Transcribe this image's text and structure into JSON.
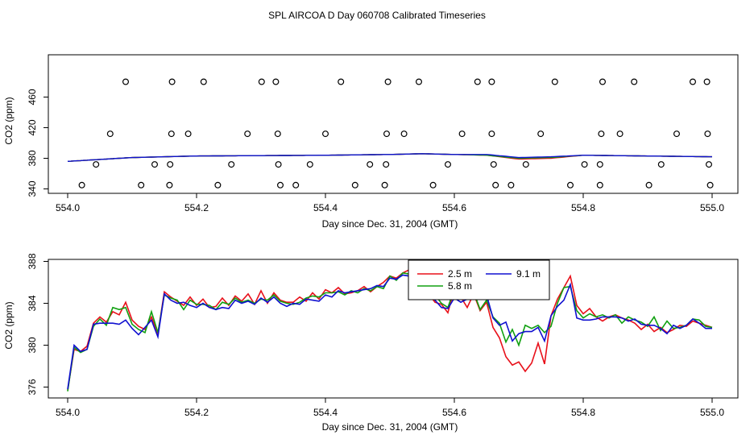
{
  "title": "SPL AIRCOA D  Day 060708  Calibrated Timeseries",
  "chart_data": [
    {
      "type": "scatter+line",
      "xlabel": "Day since Dec. 31, 2004 (GMT)",
      "ylabel": "CO2 (ppm)",
      "xlim": [
        554.0,
        555.0
      ],
      "ylim": [
        340,
        480
      ],
      "xticks": [
        554.0,
        554.2,
        554.4,
        554.6,
        554.8,
        555.0
      ],
      "xtick_labels": [
        "554.0",
        "554.2",
        "554.4",
        "554.6",
        "554.8",
        "555.0"
      ],
      "yticks": [
        340,
        380,
        420,
        460
      ],
      "ytick_labels": [
        "340",
        "380",
        "420",
        "460"
      ],
      "points": [
        {
          "x": 554.09,
          "y": 480
        },
        {
          "x": 554.162,
          "y": 480
        },
        {
          "x": 554.211,
          "y": 480
        },
        {
          "x": 554.301,
          "y": 480
        },
        {
          "x": 554.323,
          "y": 480
        },
        {
          "x": 554.424,
          "y": 480
        },
        {
          "x": 554.497,
          "y": 480
        },
        {
          "x": 554.545,
          "y": 480
        },
        {
          "x": 554.636,
          "y": 480
        },
        {
          "x": 554.658,
          "y": 480
        },
        {
          "x": 554.756,
          "y": 480
        },
        {
          "x": 554.83,
          "y": 480
        },
        {
          "x": 554.879,
          "y": 480
        },
        {
          "x": 554.97,
          "y": 480
        },
        {
          "x": 554.992,
          "y": 480
        },
        {
          "x": 554.066,
          "y": 412
        },
        {
          "x": 554.161,
          "y": 412
        },
        {
          "x": 554.187,
          "y": 412
        },
        {
          "x": 554.279,
          "y": 412
        },
        {
          "x": 554.326,
          "y": 412
        },
        {
          "x": 554.4,
          "y": 412
        },
        {
          "x": 554.495,
          "y": 412
        },
        {
          "x": 554.522,
          "y": 412
        },
        {
          "x": 554.612,
          "y": 412
        },
        {
          "x": 554.658,
          "y": 412
        },
        {
          "x": 554.734,
          "y": 412
        },
        {
          "x": 554.828,
          "y": 412
        },
        {
          "x": 554.857,
          "y": 412
        },
        {
          "x": 554.945,
          "y": 412
        },
        {
          "x": 554.993,
          "y": 412
        },
        {
          "x": 554.044,
          "y": 372
        },
        {
          "x": 554.135,
          "y": 372
        },
        {
          "x": 554.159,
          "y": 372
        },
        {
          "x": 554.254,
          "y": 372
        },
        {
          "x": 554.327,
          "y": 372
        },
        {
          "x": 554.376,
          "y": 372
        },
        {
          "x": 554.469,
          "y": 372
        },
        {
          "x": 554.494,
          "y": 372
        },
        {
          "x": 554.59,
          "y": 372
        },
        {
          "x": 554.661,
          "y": 372
        },
        {
          "x": 554.711,
          "y": 372
        },
        {
          "x": 554.802,
          "y": 372
        },
        {
          "x": 554.826,
          "y": 372
        },
        {
          "x": 554.921,
          "y": 372
        },
        {
          "x": 554.995,
          "y": 372
        },
        {
          "x": 554.022,
          "y": 345
        },
        {
          "x": 554.114,
          "y": 345
        },
        {
          "x": 554.158,
          "y": 345
        },
        {
          "x": 554.233,
          "y": 345
        },
        {
          "x": 554.33,
          "y": 345
        },
        {
          "x": 554.354,
          "y": 345
        },
        {
          "x": 554.446,
          "y": 345
        },
        {
          "x": 554.492,
          "y": 345
        },
        {
          "x": 554.567,
          "y": 345
        },
        {
          "x": 554.664,
          "y": 345
        },
        {
          "x": 554.688,
          "y": 345
        },
        {
          "x": 554.78,
          "y": 345
        },
        {
          "x": 554.826,
          "y": 345
        },
        {
          "x": 554.902,
          "y": 345
        },
        {
          "x": 554.997,
          "y": 345
        }
      ],
      "lines": [
        {
          "color": "#e8101a",
          "x": [
            554.0,
            554.1,
            554.2,
            554.4,
            554.5,
            554.55,
            554.6,
            554.65,
            554.7,
            554.75,
            554.8,
            554.9,
            555.0
          ],
          "y": [
            376,
            381,
            383,
            384,
            385,
            386,
            385,
            384,
            379,
            380,
            384,
            383,
            382
          ]
        },
        {
          "color": "#10a010",
          "x": [
            554.0,
            554.1,
            554.2,
            554.4,
            554.5,
            554.55,
            554.6,
            554.65,
            554.7,
            554.75,
            554.8,
            554.9,
            555.0
          ],
          "y": [
            376,
            381,
            383,
            384,
            385,
            386,
            385,
            384,
            380,
            381,
            384,
            383,
            382
          ]
        },
        {
          "color": "#1010d0",
          "x": [
            554.0,
            554.1,
            554.2,
            554.4,
            554.5,
            554.55,
            554.6,
            554.65,
            554.7,
            554.75,
            554.8,
            554.9,
            555.0
          ],
          "y": [
            376,
            381,
            383,
            384,
            385,
            386,
            385,
            385,
            381,
            382,
            384,
            383,
            382
          ]
        }
      ]
    },
    {
      "type": "line",
      "xlabel": "Day since Dec. 31, 2004 (GMT)",
      "ylabel": "CO2 (ppm)",
      "xlim": [
        554.0,
        555.0
      ],
      "ylim": [
        375.3,
        388.3
      ],
      "xticks": [
        554.0,
        554.2,
        554.4,
        554.6,
        554.8,
        555.0
      ],
      "xtick_labels": [
        "554.0",
        "554.2",
        "554.4",
        "554.6",
        "554.8",
        "555.0"
      ],
      "yticks": [
        376,
        380,
        384,
        388
      ],
      "ytick_labels": [
        "376",
        "380",
        "384",
        "388"
      ],
      "legend": "top-center",
      "x": [
        554.0,
        554.01,
        554.02,
        554.03,
        554.04,
        554.05,
        554.06,
        554.07,
        554.08,
        554.09,
        554.1,
        554.11,
        554.12,
        554.13,
        554.14,
        554.15,
        554.16,
        554.17,
        554.18,
        554.19,
        554.2,
        554.21,
        554.22,
        554.23,
        554.24,
        554.25,
        554.26,
        554.27,
        554.28,
        554.29,
        554.3,
        554.31,
        554.32,
        554.33,
        554.34,
        554.35,
        554.36,
        554.37,
        554.38,
        554.39,
        554.4,
        554.41,
        554.42,
        554.43,
        554.44,
        554.45,
        554.46,
        554.47,
        554.48,
        554.49,
        554.5,
        554.51,
        554.52,
        554.53,
        554.54,
        554.55,
        554.56,
        554.57,
        554.58,
        554.59,
        554.6,
        554.61,
        554.62,
        554.63,
        554.64,
        554.65,
        554.66,
        554.67,
        554.68,
        554.69,
        554.7,
        554.71,
        554.72,
        554.73,
        554.74,
        554.75,
        554.76,
        554.77,
        554.78,
        554.79,
        554.8,
        554.81,
        554.82,
        554.83,
        554.84,
        554.85,
        554.86,
        554.87,
        554.88,
        554.89,
        554.9,
        554.91,
        554.92,
        554.93,
        554.94,
        554.95,
        554.96,
        554.97,
        554.98,
        554.99,
        555.0
      ],
      "series": [
        {
          "name": "2.5 m",
          "color": "#e8101a",
          "values": [
            375.7,
            379.6,
            379.4,
            379.9,
            382.1,
            382.7,
            382.2,
            383.2,
            382.9,
            384.1,
            382.4,
            381.8,
            381.5,
            382.7,
            381.1,
            385.1,
            384.6,
            384.2,
            383.8,
            384.6,
            383.8,
            384.4,
            383.6,
            383.7,
            384.5,
            383.8,
            384.7,
            384.2,
            384.9,
            383.9,
            385.2,
            384.0,
            385.0,
            384.3,
            384.1,
            384.1,
            384.6,
            384.2,
            385.0,
            384.4,
            385.3,
            385.0,
            385.5,
            384.9,
            385.0,
            385.2,
            385.6,
            385.1,
            385.6,
            386.0,
            386.6,
            386.4,
            386.9,
            387.2,
            387.3,
            386.0,
            384.9,
            384.1,
            383.9,
            383.1,
            385.4,
            384.6,
            383.6,
            384.9,
            383.3,
            384.1,
            381.7,
            380.7,
            378.9,
            378.1,
            378.4,
            377.5,
            378.3,
            380.2,
            378.2,
            382.8,
            384.4,
            385.5,
            386.6,
            383.8,
            383.0,
            383.5,
            382.7,
            382.3,
            382.7,
            382.9,
            382.6,
            382.4,
            382.1,
            381.5,
            382.0,
            381.3,
            381.7,
            381.2,
            381.5,
            381.9,
            381.8,
            382.3,
            382.1,
            381.9,
            381.7
          ]
        },
        {
          "name": "5.8 m",
          "color": "#10a010",
          "values": [
            375.6,
            379.8,
            379.3,
            379.6,
            381.8,
            382.5,
            381.9,
            383.6,
            383.4,
            383.6,
            382.0,
            381.5,
            381.2,
            383.2,
            381.2,
            384.8,
            384.5,
            384.3,
            383.4,
            384.3,
            383.9,
            383.9,
            383.8,
            383.4,
            384.1,
            383.9,
            384.5,
            384.1,
            384.3,
            384.0,
            384.4,
            384.3,
            384.8,
            384.2,
            384.0,
            383.9,
            384.1,
            384.5,
            384.7,
            384.6,
            385.0,
            385.0,
            385.1,
            384.8,
            385.2,
            385.0,
            385.4,
            385.2,
            385.6,
            385.4,
            386.6,
            386.2,
            386.9,
            386.8,
            387.6,
            385.8,
            385.4,
            384.8,
            384.0,
            383.6,
            385.4,
            385.6,
            385.0,
            385.1,
            383.4,
            384.3,
            382.7,
            382.1,
            380.3,
            381.5,
            380.0,
            381.9,
            381.6,
            381.9,
            381.2,
            381.8,
            384.0,
            385.5,
            385.6,
            383.3,
            382.6,
            383.0,
            382.7,
            382.9,
            382.6,
            382.9,
            382.1,
            382.7,
            382.4,
            382.2,
            381.8,
            382.7,
            381.4,
            382.3,
            381.6,
            381.7,
            381.9,
            382.5,
            382.4,
            381.8,
            381.7
          ]
        },
        {
          "name": "9.1 m",
          "color": "#1010d0",
          "values": [
            375.8,
            380.0,
            379.4,
            379.6,
            382.0,
            382.1,
            382.1,
            382.1,
            382.0,
            382.4,
            381.6,
            381.0,
            381.7,
            382.4,
            380.8,
            384.9,
            384.3,
            384.0,
            384.1,
            383.8,
            383.6,
            384.0,
            383.6,
            383.4,
            383.6,
            383.5,
            384.3,
            384.0,
            384.2,
            383.9,
            384.5,
            384.1,
            384.6,
            384.0,
            383.7,
            384.0,
            383.9,
            384.4,
            384.3,
            384.2,
            384.8,
            384.6,
            385.2,
            385.0,
            385.1,
            385.2,
            385.3,
            385.4,
            385.7,
            385.6,
            386.4,
            386.3,
            386.7,
            386.6,
            387.5,
            387.3,
            386.3,
            384.3,
            383.6,
            383.5,
            384.5,
            384.1,
            384.4,
            386.4,
            386.3,
            384.8,
            382.6,
            381.9,
            382.2,
            380.4,
            381.1,
            381.3,
            381.3,
            381.7,
            380.4,
            382.8,
            383.7,
            384.3,
            385.8,
            382.6,
            382.4,
            382.4,
            382.5,
            382.7,
            382.7,
            382.7,
            382.6,
            382.3,
            382.5,
            382.0,
            381.9,
            381.9,
            381.6,
            381.1,
            381.9,
            381.6,
            381.9,
            382.5,
            382.1,
            381.6,
            381.6
          ]
        }
      ]
    }
  ]
}
